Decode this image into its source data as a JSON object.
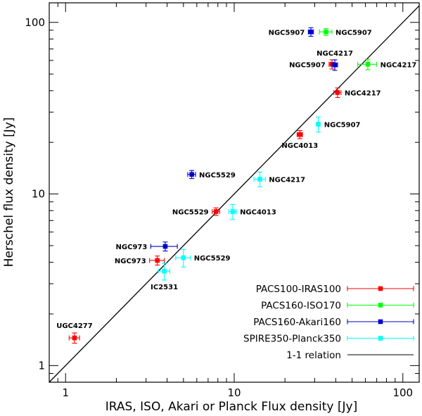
{
  "chart_data": {
    "type": "scatter",
    "xlabel": "IRAS, ISO, Akari or Planck Flux density [Jy]",
    "ylabel": "Herschel flux density [Jy]",
    "xscale": "log",
    "yscale": "log",
    "xlim": [
      0.8,
      125
    ],
    "ylim": [
      0.8,
      130
    ],
    "x_ticks": [
      {
        "value": 1,
        "label": "1"
      },
      {
        "value": 10,
        "label": "10"
      },
      {
        "value": 100,
        "label": "100"
      }
    ],
    "y_ticks": [
      {
        "value": 1,
        "label": "1"
      },
      {
        "value": 10,
        "label": "10"
      },
      {
        "value": 100,
        "label": "100"
      }
    ],
    "reference_line": {
      "name": "1-1 relation",
      "slope": 1,
      "color": "#000000"
    },
    "legend_position": "bottom-right",
    "series": [
      {
        "name": "PACS100-IRAS100",
        "color": "#ff0000",
        "points": [
          {
            "label": "UGC4277",
            "x": 1.13,
            "y": 1.45,
            "xerr": 0.08,
            "yerr": 0.1,
            "label_side": "top-left"
          },
          {
            "label": "NGC973",
            "x": 3.5,
            "y": 4.1,
            "xerr": 0.35,
            "yerr": 0.25,
            "label_side": "left"
          },
          {
            "label": "NGC5529",
            "x": 7.8,
            "y": 7.9,
            "xerr": 0.4,
            "yerr": 0.4,
            "label_side": "left"
          },
          {
            "label": "NGC4013",
            "x": 24.5,
            "y": 22.2,
            "xerr": 0.9,
            "yerr": 1.2,
            "label_side": "bottom"
          },
          {
            "label": "NGC4217",
            "x": 41,
            "y": 39,
            "xerr": 2,
            "yerr": 2.5,
            "label_side": "right"
          },
          {
            "label": "NGC5907",
            "x": 38,
            "y": 57,
            "xerr": 1.5,
            "yerr": 3.5,
            "label_side": "left"
          }
        ]
      },
      {
        "name": "PACS160-ISO170",
        "color": "#00ff00",
        "points": [
          {
            "label": "NGC5907",
            "x": 35,
            "y": 88,
            "xerr": 3,
            "yerr": 4,
            "label_side": "right"
          },
          {
            "label": "NGC4217",
            "x": 62,
            "y": 57,
            "xerr": 8,
            "yerr": 4,
            "label_side": "right"
          }
        ]
      },
      {
        "name": "PACS160-Akari160",
        "color": "#0000cc",
        "points": [
          {
            "label": "NGC5907",
            "x": 28.5,
            "y": 88,
            "xerr": 1,
            "yerr": 5,
            "label_side": "left"
          },
          {
            "label": "NGC4217",
            "x": 39.5,
            "y": 56.5,
            "xerr": 1.5,
            "yerr": 4,
            "label_side": "top"
          },
          {
            "label": "NGC5529",
            "x": 5.6,
            "y": 13,
            "xerr": 0.3,
            "yerr": 0.7,
            "label_side": "right"
          },
          {
            "label": "NGC973",
            "x": 3.9,
            "y": 4.95,
            "xerr": 0.7,
            "yerr": 0.3,
            "label_side": "left"
          }
        ]
      },
      {
        "name": "SPIRE350-Planck350",
        "color": "#00ffff",
        "points": [
          {
            "label": "NGC5907",
            "x": 31.5,
            "y": 25.5,
            "xerr": 0.8,
            "yerr": 2.6,
            "label_side": "right"
          },
          {
            "label": "NGC4217",
            "x": 14.2,
            "y": 12.2,
            "xerr": 1.1,
            "yerr": 1.2,
            "label_side": "right"
          },
          {
            "label": "NGC4013",
            "x": 9.8,
            "y": 7.9,
            "xerr": 0.5,
            "yerr": 0.8,
            "label_side": "right"
          },
          {
            "label": "NGC5529",
            "x": 5.0,
            "y": 4.25,
            "xerr": 0.5,
            "yerr": 0.5,
            "label_side": "right"
          },
          {
            "label": "IC2531",
            "x": 3.85,
            "y": 3.55,
            "xerr": 0.3,
            "yerr": 0.4,
            "label_side": "bottom"
          }
        ]
      }
    ],
    "legend": [
      {
        "label": "PACS100-IRAS100",
        "color": "#ff0000",
        "marker": true
      },
      {
        "label": "PACS160-ISO170",
        "color": "#00ff00",
        "marker": true
      },
      {
        "label": "PACS160-Akari160",
        "color": "#0000cc",
        "marker": true
      },
      {
        "label": "SPIRE350-Planck350",
        "color": "#00ffff",
        "marker": true
      },
      {
        "label": "1-1 relation",
        "color": "#000000",
        "marker": false
      }
    ]
  }
}
